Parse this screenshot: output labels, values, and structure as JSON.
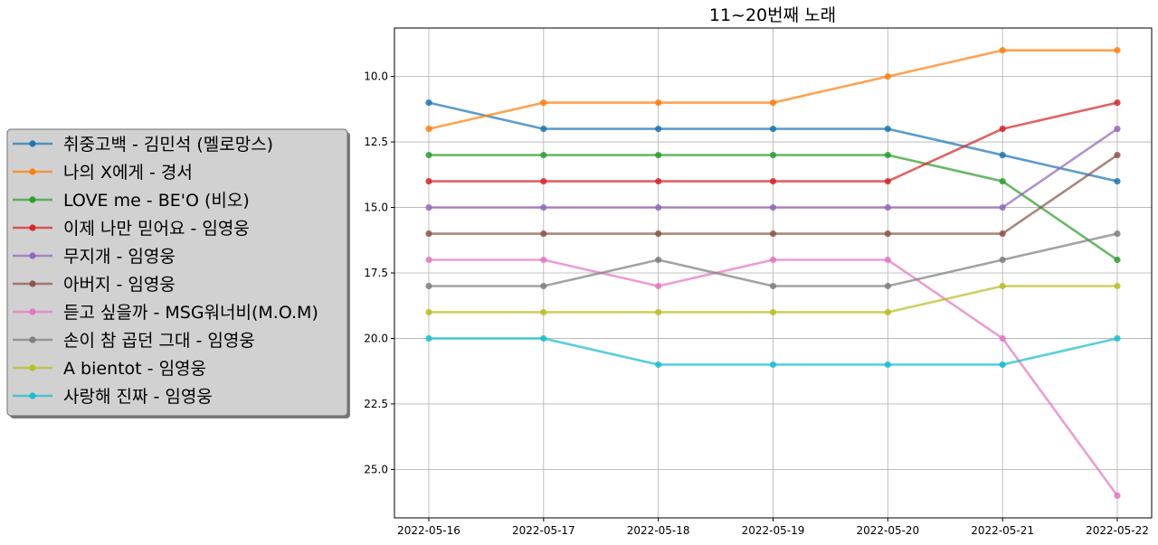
{
  "chart_data": {
    "type": "line",
    "title": "11~20번째 노래",
    "xlabel": "",
    "ylabel": "",
    "x": [
      "2022-05-16",
      "2022-05-17",
      "2022-05-18",
      "2022-05-19",
      "2022-05-20",
      "2022-05-21",
      "2022-05-22"
    ],
    "ylim": [
      26.85,
      8.15
    ],
    "y_inverted": true,
    "y_ticks": [
      "10.0",
      "12.5",
      "15.0",
      "17.5",
      "20.0",
      "22.5",
      "25.0"
    ],
    "grid": true,
    "legend_placement": "left, outside plot",
    "series": [
      {
        "name": "취중고백 - 김민석 (멜로망스)",
        "color": "#1f77b4",
        "values": [
          11,
          12,
          12,
          12,
          12,
          13,
          14
        ]
      },
      {
        "name": "나의 X에게 - 경서",
        "color": "#ff7f0e",
        "values": [
          12,
          11,
          11,
          11,
          10,
          9,
          9
        ]
      },
      {
        "name": "LOVE me - BE'O (비오)",
        "color": "#2ca02c",
        "values": [
          13,
          13,
          13,
          13,
          13,
          14,
          17
        ]
      },
      {
        "name": "이제 나만 믿어요 - 임영웅",
        "color": "#d62728",
        "values": [
          14,
          14,
          14,
          14,
          14,
          12,
          11
        ]
      },
      {
        "name": "무지개 - 임영웅",
        "color": "#9467bd",
        "values": [
          15,
          15,
          15,
          15,
          15,
          15,
          12
        ]
      },
      {
        "name": "아버지 - 임영웅",
        "color": "#8c564b",
        "values": [
          16,
          16,
          16,
          16,
          16,
          16,
          13
        ]
      },
      {
        "name": "듣고 싶을까 - MSG워너비(M.O.M)",
        "color": "#e377c2",
        "values": [
          17,
          17,
          18,
          17,
          17,
          20,
          26
        ]
      },
      {
        "name": "손이 참 곱던 그대 - 임영웅",
        "color": "#7f7f7f",
        "values": [
          18,
          18,
          17,
          18,
          18,
          17,
          16
        ]
      },
      {
        "name": "A bientot - 임영웅",
        "color": "#bcbd22",
        "values": [
          19,
          19,
          19,
          19,
          19,
          18,
          18
        ]
      },
      {
        "name": "사랑해 진짜 - 임영웅",
        "color": "#17becf",
        "values": [
          20,
          20,
          21,
          21,
          21,
          21,
          20
        ]
      }
    ]
  }
}
